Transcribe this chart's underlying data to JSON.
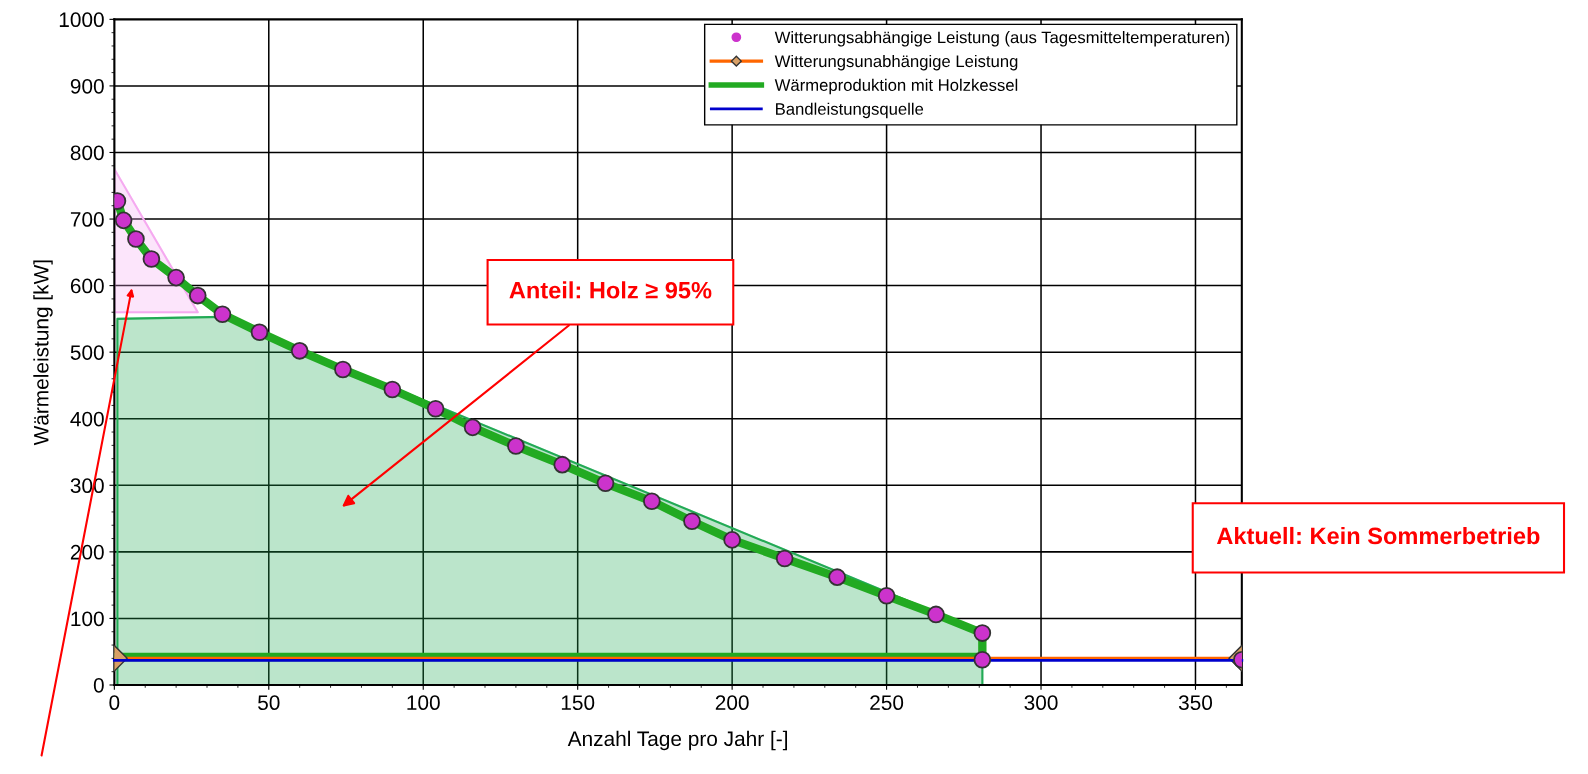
{
  "chart_data": {
    "type": "scatter",
    "xlabel": "Anzahl Tage pro Jahr [-]",
    "ylabel": "Wärmeleistung [kW]",
    "xlim": [
      0,
      365
    ],
    "ylim": [
      0,
      1000
    ],
    "xticks": [
      0,
      50,
      100,
      150,
      200,
      250,
      300,
      350
    ],
    "yticks": [
      0,
      100,
      200,
      300,
      400,
      500,
      600,
      700,
      800,
      900,
      1000
    ],
    "grid": true,
    "legend": "top right",
    "series": [
      {
        "type": "area",
        "color": "#f5aaf0",
        "x": [
          0,
          0,
          27
        ],
        "values": [
          775,
          560,
          560
        ]
      },
      {
        "type": "area",
        "color": "#22aa55",
        "x": [
          1,
          1,
          35,
          281,
          281
        ],
        "values": [
          0,
          550,
          553,
          80,
          0
        ]
      },
      {
        "type": "line",
        "name": "Wärmeproduktion mit Holzkessel",
        "color": "#22aa22",
        "x": [
          1,
          3,
          7,
          12,
          20,
          27,
          35,
          47,
          60,
          74,
          90,
          104,
          116,
          130,
          145,
          159,
          174,
          187,
          200,
          217,
          234,
          250,
          266,
          281,
          281,
          0
        ],
        "values": [
          727,
          698,
          670,
          640,
          612,
          585,
          557,
          530,
          502,
          474,
          444,
          415,
          387,
          359,
          331,
          303,
          276,
          246,
          218,
          190,
          162,
          134,
          106,
          78,
          42,
          42
        ]
      },
      {
        "type": "line",
        "name": "Witterungsunabhängige Leistung",
        "color": "#ff6600",
        "marker": "diamond",
        "x": [
          0,
          365
        ],
        "values": [
          40,
          40
        ]
      },
      {
        "type": "line",
        "name": "Bandleistungsquelle",
        "color": "#0000cc",
        "x": [
          0,
          365
        ],
        "values": [
          37,
          37
        ]
      },
      {
        "name": "Witterungsabhängige Leistung (aus Tagesmitteltemperaturen)",
        "color": "#cc33cc",
        "marker": "circle",
        "x": [
          1,
          3,
          7,
          12,
          20,
          27,
          35,
          47,
          60,
          74,
          90,
          104,
          116,
          130,
          145,
          159,
          174,
          187,
          200,
          217,
          234,
          250,
          266,
          281,
          281,
          365
        ],
        "values": [
          727,
          698,
          670,
          640,
          612,
          585,
          557,
          530,
          502,
          474,
          444,
          415,
          387,
          359,
          331,
          303,
          276,
          246,
          218,
          190,
          162,
          134,
          106,
          78,
          38,
          38
        ]
      }
    ],
    "annotations": [
      "Anteil: Holz ≥ 95%",
      "Aktuell: Kein Sommerbetrieb"
    ]
  }
}
